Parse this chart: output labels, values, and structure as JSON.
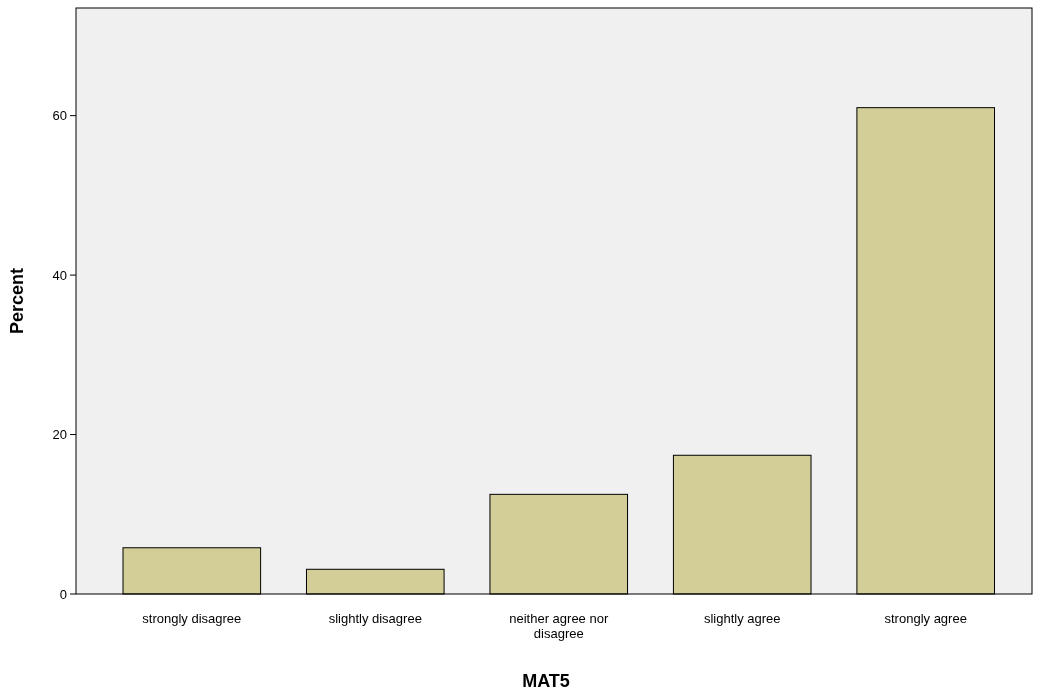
{
  "chart_data": {
    "type": "bar",
    "xlabel": "MAT5",
    "ylabel": "Percent",
    "categories": [
      "strongly disagree",
      "slightly disagree",
      "neither agree nor disagree",
      "slightly agree",
      "strongly agree"
    ],
    "values": [
      5.8,
      3.1,
      12.5,
      17.4,
      61.0
    ],
    "color": "#d3ce97",
    "ylim": [
      0,
      73.5
    ],
    "yticks": [
      0,
      20,
      40,
      60
    ],
    "grid": false
  }
}
